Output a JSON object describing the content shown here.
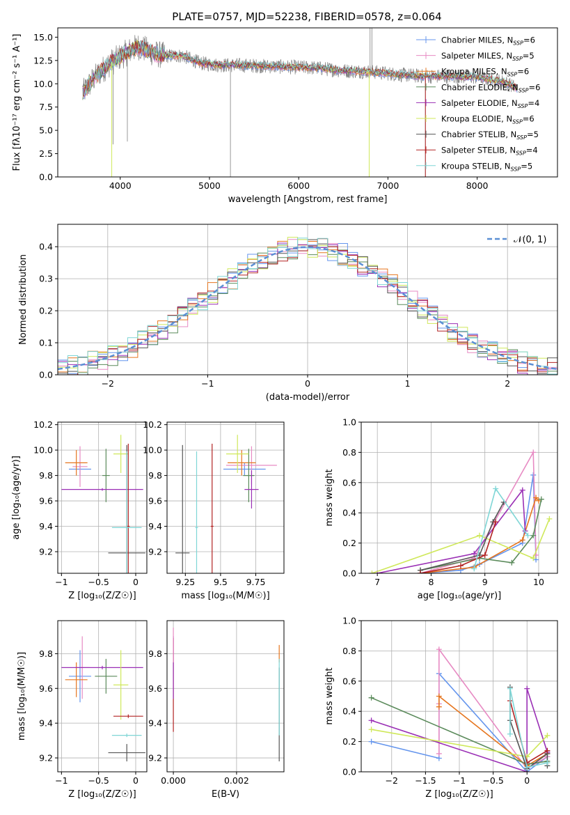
{
  "title": "PLATE=0757, MJD=52238, FIBERID=0578, z=0.064",
  "colors": {
    "chabrier_miles": "#6495ed",
    "salpeter_miles": "#e78ac3",
    "kroupa_miles": "#e6761f",
    "chabrier_elodie": "#5a8a5a",
    "salpeter_elodie": "#9a2fb5",
    "kroupa_elodie": "#cfe85a",
    "chabrier_stelib": "#555555",
    "salpeter_stelib": "#b22222",
    "kroupa_stelib": "#7fd6d6",
    "normal_curve": "#5b8fd4",
    "grid": "#b0b0b0"
  },
  "legend_spectrum": [
    {
      "key": "chabrier_miles",
      "label": "Chabrier MILES, N",
      "sub": "SSP",
      "tail": "=6"
    },
    {
      "key": "salpeter_miles",
      "label": "Salpeter MILES, N",
      "sub": "SSP",
      "tail": "=5"
    },
    {
      "key": "kroupa_miles",
      "label": "Kroupa MILES, N",
      "sub": "SSP",
      "tail": "=6"
    },
    {
      "key": "chabrier_elodie",
      "label": "Chabrier ELODIE, N",
      "sub": "SSP",
      "tail": "=6"
    },
    {
      "key": "salpeter_elodie",
      "label": "Salpeter ELODIE, N",
      "sub": "SSP",
      "tail": "=4"
    },
    {
      "key": "kroupa_elodie",
      "label": "Kroupa ELODIE, N",
      "sub": "SSP",
      "tail": "=6"
    },
    {
      "key": "chabrier_stelib",
      "label": "Chabrier STELIB, N",
      "sub": "SSP",
      "tail": "=5"
    },
    {
      "key": "salpeter_stelib",
      "label": "Salpeter STELIB, N",
      "sub": "SSP",
      "tail": "=4"
    },
    {
      "key": "kroupa_stelib",
      "label": "Kroupa STELIB, N",
      "sub": "SSP",
      "tail": "=5"
    }
  ],
  "chart_data": [
    {
      "id": "spectrum",
      "type": "line",
      "xlabel": "wavelength [Angstrom, rest frame]",
      "ylabel": "Flux [fλ10⁻¹⁷ erg cm⁻² s⁻¹ A⁻¹]",
      "xlim": [
        3300,
        8900
      ],
      "ylim": [
        0,
        16
      ],
      "xticks": [
        4000,
        5000,
        6000,
        7000,
        8000
      ],
      "yticks": [
        0.0,
        2.5,
        5.0,
        7.5,
        10.0,
        12.5,
        15.0
      ],
      "grid": false,
      "legend": "top-right",
      "continuum_x": [
        3580,
        3700,
        3800,
        3900,
        4000,
        4100,
        4200,
        4300,
        4400,
        4500,
        4700,
        4900,
        5100,
        5300,
        5600,
        5900,
        6200,
        6500,
        6800,
        7100,
        7400,
        7700,
        8000,
        8300,
        8450
      ],
      "continuum_y": [
        9.0,
        10.5,
        11.5,
        12.3,
        12.9,
        13.5,
        14.0,
        13.6,
        13.2,
        13.0,
        13.0,
        12.2,
        12.0,
        12.0,
        11.9,
        11.8,
        11.7,
        11.4,
        11.3,
        11.0,
        10.8,
        10.8,
        10.7,
        10.2,
        9.5
      ]
    },
    {
      "id": "residuals",
      "type": "line",
      "xlabel": "(data-model)/error",
      "ylabel": "Normed distribution",
      "xlim": [
        -2.5,
        2.5
      ],
      "ylim": [
        0,
        0.47
      ],
      "xticks": [
        -2,
        -1,
        0,
        1,
        2
      ],
      "yticks": [
        0.0,
        0.1,
        0.2,
        0.3,
        0.4
      ],
      "grid": true,
      "legend": "top-right",
      "reference_curve": "𝒩(0, 1)"
    },
    {
      "id": "age_vs_Z",
      "type": "scatter",
      "xlabel": "Z [log₁₀(Z/Z☉)]",
      "ylabel": "age  [log₁₀(age/yr)]",
      "xlim": [
        -1.05,
        0.15
      ],
      "ylim": [
        9.03,
        10.22
      ],
      "xticks": [
        -1.0,
        -0.5,
        0.0
      ],
      "yticks": [
        9.2,
        9.4,
        9.6,
        9.8,
        10.0,
        10.2
      ],
      "grid": true,
      "points": [
        {
          "key": "chabrier_miles",
          "x": -0.75,
          "xerr": 0.15,
          "y": 9.85,
          "yerr": 0.05
        },
        {
          "key": "salpeter_miles",
          "x": -0.75,
          "xerr": 0.1,
          "y": 9.87,
          "yerr": 0.16
        },
        {
          "key": "kroupa_miles",
          "x": -0.8,
          "xerr": 0.15,
          "y": 9.9,
          "yerr": 0.1
        },
        {
          "key": "chabrier_elodie",
          "x": -0.4,
          "xerr": 0.05,
          "y": 9.8,
          "yerr": 0.21
        },
        {
          "key": "salpeter_elodie",
          "x": -0.45,
          "xerr": 0.55,
          "y": 9.69,
          "yerr": 0.01
        },
        {
          "key": "kroupa_elodie",
          "x": -0.2,
          "xerr": 0.1,
          "y": 9.97,
          "yerr": 0.15
        },
        {
          "key": "chabrier_stelib",
          "x": -0.12,
          "xerr": 0.25,
          "y": 9.19,
          "yerr": 0.85
        },
        {
          "key": "salpeter_stelib",
          "x": -0.1,
          "xerr": 0.02,
          "y": 9.4,
          "yerr": 0.65
        },
        {
          "key": "kroupa_stelib",
          "x": -0.12,
          "xerr": 0.2,
          "y": 9.39,
          "yerr": 0.6
        }
      ]
    },
    {
      "id": "age_vs_mass",
      "type": "scatter",
      "xlabel": "mass [log₁₀(M/M☉)]",
      "ylabel": "",
      "xlim": [
        9.12,
        9.95
      ],
      "ylim": [
        9.03,
        10.22
      ],
      "xticks": [
        9.25,
        9.5,
        9.75
      ],
      "yticks": [
        9.2,
        9.4,
        9.6,
        9.8,
        10.0,
        10.2
      ],
      "grid": true,
      "points": [
        {
          "key": "chabrier_miles",
          "x": 9.67,
          "xerr": 0.15,
          "y": 9.85,
          "yerr": 0.05
        },
        {
          "key": "salpeter_miles",
          "x": 9.72,
          "xerr": 0.18,
          "y": 9.88,
          "yerr": 0.15
        },
        {
          "key": "kroupa_miles",
          "x": 9.65,
          "xerr": 0.1,
          "y": 9.9,
          "yerr": 0.1
        },
        {
          "key": "chabrier_elodie",
          "x": 9.7,
          "xerr": 0.04,
          "y": 9.8,
          "yerr": 0.21
        },
        {
          "key": "salpeter_elodie",
          "x": 9.72,
          "xerr": 0.05,
          "y": 9.69,
          "yerr": 0.15
        },
        {
          "key": "kroupa_elodie",
          "x": 9.62,
          "xerr": 0.08,
          "y": 9.97,
          "yerr": 0.15
        },
        {
          "key": "chabrier_stelib",
          "x": 9.23,
          "xerr": 0.05,
          "y": 9.19,
          "yerr": 0.85
        },
        {
          "key": "salpeter_stelib",
          "x": 9.44,
          "xerr": 0.01,
          "y": 9.4,
          "yerr": 0.65
        },
        {
          "key": "kroupa_stelib",
          "x": 9.33,
          "xerr": 0.01,
          "y": 9.39,
          "yerr": 0.6
        }
      ]
    },
    {
      "id": "weight_vs_age",
      "type": "line",
      "xlabel": "age  [log₁₀(age/yr)]",
      "ylabel": "mass weight",
      "xlim": [
        6.7,
        10.35
      ],
      "ylim": [
        0,
        1.0
      ],
      "xticks": [
        7,
        8,
        9,
        10
      ],
      "yticks": [
        0.0,
        0.2,
        0.4,
        0.6,
        0.8,
        1.0
      ],
      "grid": true,
      "series": [
        {
          "key": "chabrier_miles",
          "x": [
            7.8,
            8.55,
            8.9,
            9.7,
            9.9,
            9.95
          ],
          "y": [
            0.0,
            0.02,
            0.06,
            0.2,
            0.65,
            0.09
          ]
        },
        {
          "key": "salpeter_miles",
          "x": [
            7.8,
            8.8,
            9.9,
            9.95
          ],
          "y": [
            0.0,
            0.1,
            0.8,
            0.12
          ]
        },
        {
          "key": "kroupa_miles",
          "x": [
            7.8,
            8.8,
            9.7,
            9.95,
            10.0
          ],
          "y": [
            0.0,
            0.04,
            0.22,
            0.5,
            0.48
          ]
        },
        {
          "key": "chabrier_elodie",
          "x": [
            7.8,
            8.9,
            9.5,
            9.9,
            10.05
          ],
          "y": [
            0.02,
            0.1,
            0.07,
            0.25,
            0.49
          ]
        },
        {
          "key": "salpeter_elodie",
          "x": [
            7.0,
            8.8,
            9.7,
            9.75
          ],
          "y": [
            0.0,
            0.13,
            0.55,
            0.28
          ]
        },
        {
          "key": "kroupa_elodie",
          "x": [
            6.9,
            8.9,
            9.9,
            10.2
          ],
          "y": [
            0.0,
            0.25,
            0.1,
            0.36
          ]
        },
        {
          "key": "chabrier_stelib",
          "x": [
            7.8,
            8.9,
            9.15,
            9.35
          ],
          "y": [
            0.02,
            0.12,
            0.34,
            0.47
          ]
        },
        {
          "key": "salpeter_stelib",
          "x": [
            7.8,
            8.55,
            9.0,
            9.2
          ],
          "y": [
            0.0,
            0.05,
            0.12,
            0.34
          ]
        },
        {
          "key": "kroupa_stelib",
          "x": [
            8.8,
            9.2,
            9.8
          ],
          "y": [
            0.03,
            0.56,
            0.25
          ]
        }
      ]
    },
    {
      "id": "mass_vs_Z",
      "type": "scatter",
      "xlabel": "Z [log₁₀(Z/Z☉)]",
      "ylabel": "mass [log₁₀(M/M☉)]",
      "xlim": [
        -1.05,
        0.15
      ],
      "ylim": [
        9.12,
        9.99
      ],
      "xticks": [
        -1.0,
        -0.5,
        0.0
      ],
      "yticks": [
        9.2,
        9.4,
        9.6,
        9.8
      ],
      "grid": true,
      "points": [
        {
          "key": "chabrier_miles",
          "x": -0.75,
          "xerr": 0.15,
          "y": 9.67,
          "yerr": 0.15
        },
        {
          "key": "salpeter_miles",
          "x": -0.72,
          "xerr": 0.1,
          "y": 9.72,
          "yerr": 0.18
        },
        {
          "key": "kroupa_miles",
          "x": -0.8,
          "xerr": 0.15,
          "y": 9.65,
          "yerr": 0.1
        },
        {
          "key": "chabrier_elodie",
          "x": -0.4,
          "xerr": 0.15,
          "y": 9.67,
          "yerr": 0.1
        },
        {
          "key": "salpeter_elodie",
          "x": -0.45,
          "xerr": 0.55,
          "y": 9.72,
          "yerr": 0.01
        },
        {
          "key": "kroupa_elodie",
          "x": -0.2,
          "xerr": 0.1,
          "y": 9.62,
          "yerr": 0.2
        },
        {
          "key": "chabrier_stelib",
          "x": -0.12,
          "xerr": 0.25,
          "y": 9.23,
          "yerr": 0.05
        },
        {
          "key": "salpeter_stelib",
          "x": -0.1,
          "xerr": 0.2,
          "y": 9.44,
          "yerr": 0.01
        },
        {
          "key": "kroupa_stelib",
          "x": -0.12,
          "xerr": 0.2,
          "y": 9.33,
          "yerr": 0.01
        }
      ]
    },
    {
      "id": "mass_vs_ebv",
      "type": "scatter",
      "xlabel": "E(B-V)",
      "ylabel": "",
      "xlim": [
        -0.0002,
        0.0035
      ],
      "ylim": [
        9.12,
        9.99
      ],
      "xticks": [
        0.0,
        0.002
      ],
      "xticklabels": [
        "0.000",
        "0.002"
      ],
      "yticks": [
        9.2,
        9.4,
        9.6,
        9.8
      ],
      "grid": true,
      "points": [
        {
          "key": "salpeter_stelib",
          "x": 0.0,
          "y": 9.62,
          "yerr": 0.27
        },
        {
          "key": "salpeter_elodie",
          "x": 0.0,
          "y": 9.72,
          "yerr": 0.18
        },
        {
          "key": "salpeter_miles",
          "x": 0.0,
          "y": 9.85,
          "yerr": 0.1
        },
        {
          "key": "kroupa_miles",
          "x": 0.00335,
          "y": 9.8,
          "yerr": 0.05
        },
        {
          "key": "chabrier_stelib",
          "x": 0.00335,
          "y": 9.45,
          "yerr": 0.27
        },
        {
          "key": "kroupa_stelib",
          "x": 0.00335,
          "y": 9.55,
          "yerr": 0.22
        }
      ]
    },
    {
      "id": "weight_vs_Z",
      "type": "line",
      "xlabel": "Z [log₁₀(Z/Z☉)]",
      "ylabel": "mass weight",
      "xlim": [
        -2.45,
        0.45
      ],
      "ylim": [
        0,
        1.0
      ],
      "xticks": [
        -2.0,
        -1.5,
        -1.0,
        -0.5,
        0.0
      ],
      "yticks": [
        0.0,
        0.2,
        0.4,
        0.6,
        0.8,
        1.0
      ],
      "grid": true,
      "series": [
        {
          "key": "chabrier_miles",
          "x": [
            -2.3,
            -1.3,
            -1.3,
            0.0,
            0.3
          ],
          "y": [
            0.2,
            0.09,
            0.65,
            0.0,
            0.1
          ]
        },
        {
          "key": "salpeter_miles",
          "x": [
            -1.3,
            -1.3,
            -1.3,
            0.0,
            0.3
          ],
          "y": [
            0.12,
            0.45,
            0.81,
            0.02,
            0.1
          ]
        },
        {
          "key": "kroupa_miles",
          "x": [
            -1.3,
            -1.3,
            0.0,
            0.3
          ],
          "y": [
            0.43,
            0.5,
            0.04,
            0.12
          ]
        },
        {
          "key": "chabrier_elodie",
          "x": [
            -2.3,
            0.0,
            0.3
          ],
          "y": [
            0.49,
            0.05,
            0.07
          ]
        },
        {
          "key": "salpeter_elodie",
          "x": [
            -2.3,
            0.0,
            0.0,
            0.3
          ],
          "y": [
            0.34,
            0.0,
            0.55,
            0.13
          ]
        },
        {
          "key": "kroupa_elodie",
          "x": [
            -2.3,
            0.0,
            0.3
          ],
          "y": [
            0.28,
            0.1,
            0.24
          ]
        },
        {
          "key": "chabrier_stelib",
          "x": [
            -0.25,
            -0.25,
            0.0,
            0.3,
            0.3
          ],
          "y": [
            0.56,
            0.34,
            0.02,
            0.12,
            0.04
          ]
        },
        {
          "key": "salpeter_stelib",
          "x": [
            -0.25,
            0.0,
            0.3
          ],
          "y": [
            0.47,
            0.06,
            0.14
          ]
        },
        {
          "key": "kroupa_stelib",
          "x": [
            -0.25,
            -0.25,
            0.0,
            0.3
          ],
          "y": [
            0.25,
            0.55,
            0.03,
            0.06
          ]
        }
      ]
    }
  ]
}
